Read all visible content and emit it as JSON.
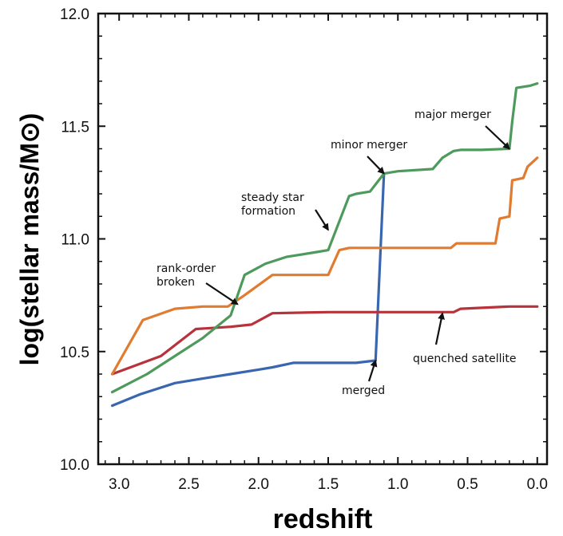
{
  "chart_data": {
    "type": "line",
    "xlabel": "redshift",
    "ylabel": "log(stellar mass/M⊙)",
    "xlim": [
      3.15,
      -0.07
    ],
    "ylim": [
      10.0,
      12.0
    ],
    "x_ticks": [
      3.0,
      2.5,
      2.0,
      1.5,
      1.0,
      0.5,
      0.0
    ],
    "x_tick_labels": [
      "3.0",
      "2.5",
      "2.0",
      "1.5",
      "1.0",
      "0.5",
      "0.0"
    ],
    "y_ticks": [
      10.0,
      10.5,
      11.0,
      11.5,
      12.0
    ],
    "y_tick_labels": [
      "10.0",
      "10.5",
      "11.0",
      "11.5",
      "12.0"
    ],
    "grid": false,
    "series": [
      {
        "color": "#3a66b0",
        "x": [
          3.05,
          2.85,
          2.6,
          2.4,
          2.2,
          2.0,
          1.9,
          1.75,
          1.5,
          1.3,
          1.16,
          1.1
        ],
        "y": [
          10.26,
          10.31,
          10.36,
          10.38,
          10.4,
          10.42,
          10.43,
          10.45,
          10.45,
          10.45,
          10.46,
          11.29
        ]
      },
      {
        "color": "#b8323b",
        "x": [
          3.05,
          2.7,
          2.45,
          2.2,
          2.05,
          1.9,
          1.5,
          1.0,
          0.6,
          0.55,
          0.2,
          0.0
        ],
        "y": [
          10.4,
          10.48,
          10.6,
          10.61,
          10.62,
          10.67,
          10.675,
          10.675,
          10.675,
          10.69,
          10.7,
          10.7
        ]
      },
      {
        "color": "#e07b30",
        "x": [
          3.05,
          2.83,
          2.6,
          2.4,
          2.22,
          2.1,
          1.9,
          1.5,
          1.42,
          1.35,
          1.1,
          0.9,
          0.62,
          0.58,
          0.3,
          0.27,
          0.2,
          0.18,
          0.1,
          0.07,
          0.0
        ],
        "y": [
          10.4,
          10.64,
          10.69,
          10.7,
          10.7,
          10.75,
          10.84,
          10.84,
          10.95,
          10.96,
          10.96,
          10.96,
          10.96,
          10.98,
          10.98,
          11.09,
          11.1,
          11.26,
          11.27,
          11.32,
          11.36
        ]
      },
      {
        "color": "#4e9a5c",
        "x": [
          3.05,
          2.8,
          2.6,
          2.4,
          2.2,
          2.1,
          1.95,
          1.8,
          1.6,
          1.5,
          1.35,
          1.3,
          1.2,
          1.15,
          1.1,
          1.0,
          0.75,
          0.68,
          0.6,
          0.55,
          0.4,
          0.2,
          0.18,
          0.15,
          0.05,
          0.0
        ],
        "y": [
          10.32,
          10.4,
          10.48,
          10.56,
          10.66,
          10.84,
          10.89,
          10.92,
          10.94,
          10.95,
          11.19,
          11.2,
          11.21,
          11.25,
          11.29,
          11.3,
          11.31,
          11.36,
          11.39,
          11.395,
          11.395,
          11.4,
          11.52,
          11.67,
          11.68,
          11.69
        ]
      }
    ],
    "annotations": [
      {
        "lines": [
          "major merger"
        ],
        "arrow_to": [
          0.2,
          11.4
        ]
      },
      {
        "lines": [
          "minor merger"
        ],
        "arrow_to": [
          1.1,
          11.29
        ]
      },
      {
        "lines": [
          "steady star",
          "formation"
        ],
        "arrow_to": [
          1.5,
          11.04
        ]
      },
      {
        "lines": [
          "rank-order",
          "broken"
        ],
        "arrow_to": [
          2.15,
          10.71
        ]
      },
      {
        "lines": [
          "quenched satellite"
        ],
        "arrow_to": [
          0.68,
          10.67
        ]
      },
      {
        "lines": [
          "merged"
        ],
        "arrow_to": [
          1.16,
          10.46
        ]
      }
    ]
  }
}
